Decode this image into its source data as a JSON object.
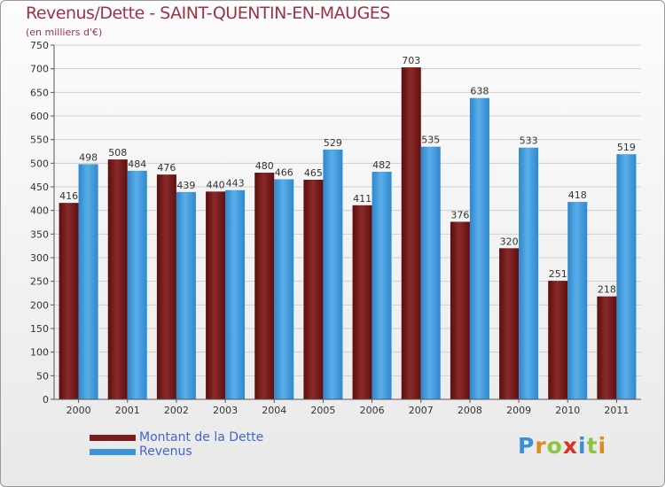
{
  "title": "Revenus/Dette - SAINT-QUENTIN-EN-MAUGES",
  "subtitle": "(en milliers d'€)",
  "legend": {
    "debt_label": "Montant de la Dette",
    "revenue_label": "Revenus"
  },
  "logo": {
    "letters": [
      "P",
      "r",
      "o",
      "x",
      "i",
      "t",
      "i"
    ],
    "colors": [
      "#3a8fd8",
      "#e08a1e",
      "#8cc63f",
      "#d9331f",
      "#3a8fd8",
      "#8cc63f",
      "#e08a1e"
    ]
  },
  "colors": {
    "debt": "#7a1e1e",
    "revenue": "#3d95d9"
  },
  "chart_data": {
    "type": "bar",
    "title": "Revenus/Dette - SAINT-QUENTIN-EN-MAUGES",
    "ylabel": "(en milliers d'€)",
    "ylim": [
      0,
      750
    ],
    "ystep": 50,
    "categories": [
      "2000",
      "2001",
      "2002",
      "2003",
      "2004",
      "2005",
      "2006",
      "2007",
      "2008",
      "2009",
      "2010",
      "2011"
    ],
    "series": [
      {
        "name": "Montant de la Dette",
        "values": [
          416,
          508,
          476,
          440,
          480,
          465,
          411,
          703,
          376,
          320,
          251,
          218
        ]
      },
      {
        "name": "Revenus",
        "values": [
          498,
          484,
          439,
          443,
          466,
          529,
          482,
          535,
          638,
          533,
          418,
          519
        ]
      }
    ]
  }
}
